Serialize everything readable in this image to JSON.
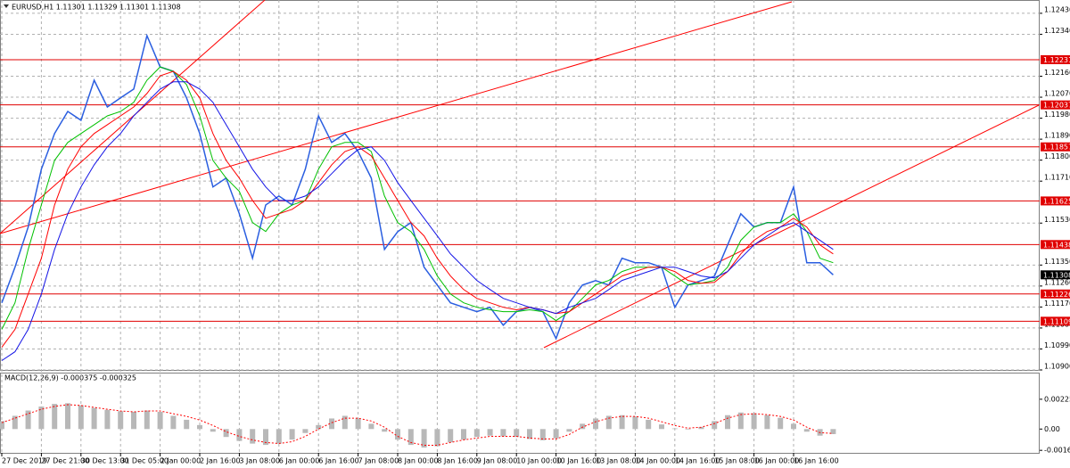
{
  "chart_data": [
    {
      "type": "line",
      "title": "EURUSD,H1  1.11301 1.11329 1.11301 1.11308",
      "categories": [
        "27 Dec 2019",
        null,
        null,
        "27 Dec 21:00",
        null,
        null,
        "30 Dec 13:00",
        null,
        null,
        "31 Dec 05:00",
        null,
        null,
        "2 Jan 00:00",
        null,
        null,
        "2 Jan 16:00",
        null,
        null,
        "3 Jan 08:00",
        null,
        null,
        "6 Jan 00:00",
        null,
        null,
        "6 Jan 16:00",
        null,
        null,
        "7 Jan 08:00",
        null,
        null,
        "8 Jan 00:00",
        null,
        null,
        "8 Jan 16:00",
        null,
        null,
        "9 Jan 08:00",
        null,
        null,
        "10 Jan 00:00",
        null,
        null,
        "10 Jan 16:00",
        null,
        null,
        "13 Jan 08:00",
        null,
        null,
        "14 Jan 00:00",
        null,
        null,
        "14 Jan 16:00",
        null,
        null,
        "15 Jan 08:00",
        null,
        null,
        "16 Jan 00:00",
        null,
        null,
        "16 Jan 16:00",
        null,
        null,
        null
      ],
      "series": [
        {
          "color": "#2a5ee0",
          "values": [
            1.11188,
            1.11341,
            1.11513,
            1.11761,
            1.11914,
            1.12009,
            1.11971,
            1.12143,
            1.12028,
            1.12067,
            1.12105,
            1.12334,
            1.122,
            1.12181,
            1.12067,
            1.11914,
            1.11685,
            1.11723,
            1.1157,
            1.11379,
            1.11608,
            1.11646,
            1.11608,
            1.11761,
            1.1199,
            1.11876,
            1.11914,
            1.11837,
            1.11723,
            1.11417,
            1.11493,
            1.11532,
            1.11341,
            1.11264,
            1.11188,
            1.11169,
            1.1115,
            1.11169,
            1.11092,
            1.1115,
            1.11169,
            1.1115,
            1.11035,
            1.11188,
            1.11264,
            1.11283,
            1.11264,
            1.11379,
            1.1136,
            1.1136,
            1.11341,
            1.11169,
            1.11264,
            1.11283,
            1.11302,
            1.11436,
            1.1157,
            1.11513,
            1.11532,
            1.11532,
            1.11685,
            1.1136,
            1.1136,
            1.11308
          ]
        },
        {
          "color": "#00c000",
          "values": [
            1.11074,
            1.11188,
            1.11417,
            1.11608,
            1.11799,
            1.11876,
            1.11914,
            1.11952,
            1.1199,
            1.12009,
            1.12048,
            1.12143,
            1.122,
            1.12181,
            1.12124,
            1.1199,
            1.11799,
            1.11723,
            1.11666,
            1.11532,
            1.11494,
            1.1157,
            1.11608,
            1.11627,
            1.11761,
            1.11857,
            1.11876,
            1.11876,
            1.11837,
            1.11646,
            1.11532,
            1.11494,
            1.11417,
            1.11303,
            1.11226,
            1.11188,
            1.11169,
            1.11158,
            1.1115,
            1.1115,
            1.11158,
            1.1115,
            1.11112,
            1.1115,
            1.11207,
            1.11265,
            1.11284,
            1.11322,
            1.11341,
            1.11341,
            1.11341,
            1.11303,
            1.11265,
            1.11272,
            1.11284,
            1.11341,
            1.11456,
            1.11513,
            1.11532,
            1.11532,
            1.1157,
            1.11494,
            1.11379,
            1.1136
          ]
        },
        {
          "color": "#ff0000",
          "values": [
            1.10997,
            1.11074,
            1.11226,
            1.11379,
            1.11608,
            1.11761,
            1.11857,
            1.11914,
            1.11952,
            1.1199,
            1.12028,
            1.12086,
            1.12162,
            1.12181,
            1.12143,
            1.12067,
            1.11914,
            1.11799,
            1.11723,
            1.11627,
            1.11551,
            1.1157,
            1.11589,
            1.11627,
            1.11704,
            1.1178,
            1.11837,
            1.11857,
            1.11818,
            1.11723,
            1.11627,
            1.11532,
            1.11475,
            1.11379,
            1.11303,
            1.11245,
            1.11207,
            1.11188,
            1.11169,
            1.11158,
            1.11169,
            1.11158,
            1.11142,
            1.1115,
            1.11188,
            1.11226,
            1.11265,
            1.11303,
            1.11322,
            1.11341,
            1.11341,
            1.11322,
            1.11284,
            1.11272,
            1.11276,
            1.11322,
            1.11398,
            1.11456,
            1.11494,
            1.11513,
            1.11551,
            1.11513,
            1.11436,
            1.11398
          ]
        },
        {
          "color": "#1414e6",
          "values": [
            1.1094,
            1.10978,
            1.11074,
            1.11226,
            1.11417,
            1.1157,
            1.11685,
            1.1178,
            1.11857,
            1.11914,
            1.1199,
            1.12048,
            1.12105,
            1.12136,
            1.12136,
            1.12105,
            1.12048,
            1.11952,
            1.11857,
            1.11761,
            1.11685,
            1.11627,
            1.11627,
            1.11646,
            1.11685,
            1.11742,
            1.11799,
            1.11845,
            1.11857,
            1.11799,
            1.11704,
            1.11627,
            1.11551,
            1.11475,
            1.11398,
            1.11341,
            1.11284,
            1.11245,
            1.11207,
            1.11188,
            1.11169,
            1.11158,
            1.11142,
            1.11169,
            1.11188,
            1.11207,
            1.11245,
            1.11284,
            1.11303,
            1.11322,
            1.11341,
            1.11341,
            1.11322,
            1.11303,
            1.11295,
            1.11322,
            1.11379,
            1.11436,
            1.11475,
            1.11513,
            1.11532,
            1.11494,
            1.11456,
            1.11417
          ]
        }
      ],
      "ylim": [
        1.109,
        1.12487
      ],
      "yticks": [
        {
          "value": 1.1243,
          "label": "1.12430"
        },
        {
          "value": 1.1234,
          "label": "1.12340"
        },
        {
          "value": 1.1216,
          "label": "1.12160"
        },
        {
          "value": 1.1207,
          "label": "1.12070"
        },
        {
          "value": 1.1198,
          "label": "1.11980"
        },
        {
          "value": 1.1189,
          "label": "1.11890"
        },
        {
          "value": 1.118,
          "label": "1.11800"
        },
        {
          "value": 1.1171,
          "label": "1.11710"
        },
        {
          "value": 1.1153,
          "label": "1.11530"
        },
        {
          "value": 1.1135,
          "label": "1.11350"
        },
        {
          "value": 1.1126,
          "label": "1.11260"
        },
        {
          "value": 1.1117,
          "label": "1.11170"
        },
        {
          "value": 1.1108,
          "label": "1.11080"
        },
        {
          "value": 1.1099,
          "label": "1.10990"
        },
        {
          "value": 1.109,
          "label": "1.10900"
        }
      ],
      "levels": [
        1.12231,
        1.12037,
        1.11857,
        1.11625,
        1.11438,
        1.11226,
        1.11109
      ],
      "level_color": "#e00000",
      "current_price": 1.11308,
      "grid": true
    },
    {
      "type": "macd",
      "title": "MACD(12,26,9) -0.000375 -0.000325",
      "series": [
        {
          "color": "#b8b8b8",
          "values": [
            0.0006,
            0.001,
            0.0014,
            0.0017,
            0.0019,
            0.00195,
            0.0018,
            0.0016,
            0.00145,
            0.00135,
            0.0013,
            0.0014,
            0.0013,
            0.001,
            0.0007,
            0.0003,
            -0.0002,
            -0.0006,
            -0.0009,
            -0.0011,
            -0.0012,
            -0.0011,
            -0.0008,
            -0.0003,
            0.0003,
            0.0008,
            0.001,
            0.0008,
            0.0004,
            -0.0002,
            -0.0008,
            -0.0012,
            -0.0014,
            -0.0013,
            -0.001,
            -0.0008,
            -0.0006,
            -0.0005,
            -0.00055,
            -0.0006,
            -0.00075,
            -0.00085,
            -0.0007,
            -0.0002,
            0.0004,
            0.0008,
            0.001,
            0.00105,
            0.00095,
            0.0007,
            0.00035,
            5e-05,
            -5e-05,
            0.00015,
            0.0006,
            0.00105,
            0.00125,
            0.0012,
            0.00105,
            0.00085,
            0.0004,
            -0.0002,
            -0.0005,
            -0.00038
          ]
        },
        {
          "color": "#ff0000",
          "values": [
            0.00048,
            0.00082,
            0.00116,
            0.0015,
            0.00171,
            0.00184,
            0.00178,
            0.00164,
            0.0015,
            0.00137,
            0.0013,
            0.00137,
            0.00137,
            0.00116,
            0.00096,
            0.00068,
            0.00027,
            -0.0002,
            -0.00055,
            -0.00082,
            -0.00102,
            -0.00109,
            -0.00096,
            -0.00055,
            0,
            0.00048,
            0.00082,
            0.00082,
            0.00061,
            0.00014,
            -0.00055,
            -0.00102,
            -0.00123,
            -0.00123,
            -0.00102,
            -0.00082,
            -0.00068,
            -0.00055,
            -0.00055,
            -0.00055,
            -0.00068,
            -0.00075,
            -0.00075,
            -0.00041,
            0.00014,
            0.00055,
            0.00082,
            0.00096,
            0.00096,
            0.00082,
            0.00055,
            0.00027,
            7e-05,
            0.00014,
            0.00041,
            0.00082,
            0.00109,
            0.00116,
            0.00109,
            0.00096,
            0.00068,
            0.00014,
            -0.00027,
            -0.00033
          ]
        }
      ],
      "ylim": [
        -0.0018,
        0.0042
      ],
      "yticks": [
        0.002254,
        {
          "value": 0,
          "label": "0.00"
        },
        -0.00161
      ]
    }
  ]
}
